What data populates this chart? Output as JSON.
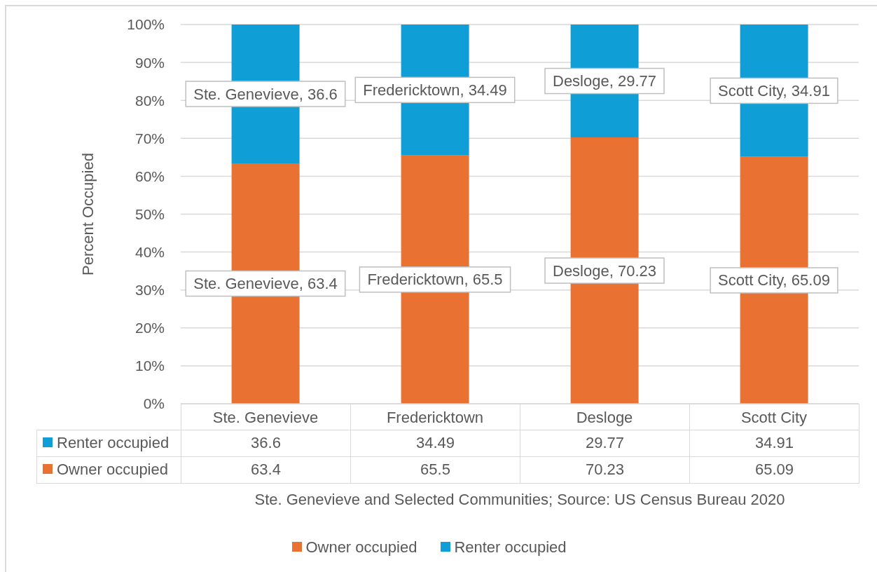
{
  "chart_data": {
    "type": "bar",
    "stacked": true,
    "xlabel": "Ste. Genevieve and Selected Communities; Source: US Census Bureau 2020",
    "ylabel": "Percent Occupied",
    "categories": [
      "Ste. Genevieve",
      "Fredericktown",
      "Desloge",
      "Scott City"
    ],
    "series": [
      {
        "name": "Owner occupied",
        "color": "#e97132",
        "values": [
          63.4,
          65.5,
          70.23,
          65.09
        ]
      },
      {
        "name": "Renter occupied",
        "color": "#0f9ed5",
        "values": [
          36.6,
          34.49,
          29.77,
          34.91
        ]
      }
    ],
    "ylim": [
      0,
      100
    ],
    "yticks": [
      {
        "value": 0,
        "label": "0%"
      },
      {
        "value": 10,
        "label": "10%"
      },
      {
        "value": 20,
        "label": "20%"
      },
      {
        "value": 30,
        "label": "30%"
      },
      {
        "value": 40,
        "label": "40%"
      },
      {
        "value": 50,
        "label": "50%"
      },
      {
        "value": 60,
        "label": "60%"
      },
      {
        "value": 70,
        "label": "70%"
      },
      {
        "value": 80,
        "label": "80%"
      },
      {
        "value": 90,
        "label": "90%"
      },
      {
        "value": 100,
        "label": "100%"
      }
    ],
    "annotations": [
      "Ste. Genevieve, 63.4",
      "Fredericktown, 65.5",
      "Desloge, 70.23",
      "Scott City, 65.09",
      "Ste. Genevieve, 36.6",
      "Fredericktown, 34.49",
      "Desloge, 29.77",
      "Scott City, 34.91"
    ],
    "grid": "y",
    "legend": "bottom",
    "data_labels": true
  }
}
